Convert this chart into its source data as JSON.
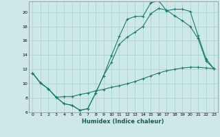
{
  "xlabel": "Humidex (Indice chaleur)",
  "ylabel": "",
  "bg_color": "#cce9e7",
  "grid_color": "#aad4d1",
  "line_color": "#1a7a6e",
  "xlim": [
    -0.5,
    23.5
  ],
  "ylim": [
    6,
    21.5
  ],
  "xticks": [
    0,
    1,
    2,
    3,
    4,
    5,
    6,
    7,
    8,
    9,
    10,
    11,
    12,
    13,
    14,
    15,
    16,
    17,
    18,
    19,
    20,
    21,
    22,
    23
  ],
  "yticks": [
    6,
    8,
    10,
    12,
    14,
    16,
    18,
    20
  ],
  "line1_x": [
    0,
    1,
    2,
    3,
    4,
    5,
    6,
    7,
    8,
    9,
    10,
    11,
    12,
    13,
    14,
    15,
    16,
    17,
    18,
    19,
    20,
    21,
    22,
    23
  ],
  "line1_y": [
    11.5,
    10.1,
    9.3,
    8.1,
    7.2,
    7.0,
    6.3,
    6.5,
    8.7,
    11.1,
    13.9,
    16.6,
    19.0,
    19.4,
    19.4,
    21.3,
    21.6,
    20.2,
    20.4,
    20.4,
    20.1,
    16.7,
    13.5,
    12.1
  ],
  "line2_x": [
    0,
    1,
    2,
    3,
    4,
    5,
    6,
    7,
    8,
    9,
    10,
    11,
    12,
    13,
    14,
    15,
    16,
    17,
    18,
    19,
    20,
    21,
    22,
    23
  ],
  "line2_y": [
    11.5,
    10.1,
    9.3,
    8.1,
    7.2,
    7.0,
    6.3,
    6.5,
    8.7,
    11.1,
    13.0,
    15.5,
    16.5,
    17.2,
    18.0,
    19.8,
    20.5,
    20.3,
    19.5,
    18.8,
    18.0,
    16.3,
    13.2,
    12.1
  ],
  "line3_x": [
    0,
    1,
    2,
    3,
    4,
    5,
    6,
    7,
    8,
    9,
    10,
    11,
    12,
    13,
    14,
    15,
    16,
    17,
    18,
    19,
    20,
    21,
    22,
    23
  ],
  "line3_y": [
    11.5,
    10.1,
    9.3,
    8.1,
    8.2,
    8.2,
    8.5,
    8.7,
    9.0,
    9.2,
    9.5,
    9.7,
    10.0,
    10.3,
    10.7,
    11.1,
    11.5,
    11.8,
    12.0,
    12.2,
    12.3,
    12.3,
    12.2,
    12.1
  ]
}
